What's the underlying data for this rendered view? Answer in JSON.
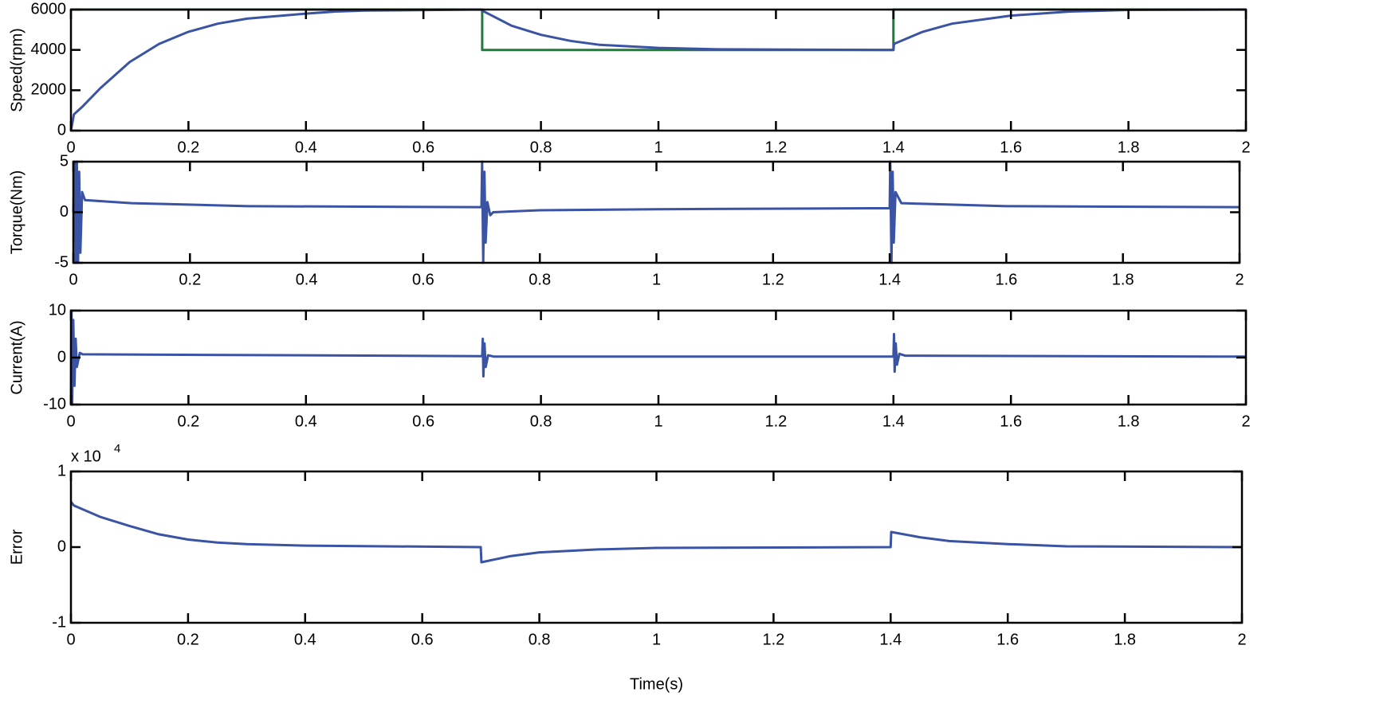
{
  "chart_data": [
    {
      "type": "line",
      "ylabel": "Speed(rpm)",
      "xlim": [
        0,
        2
      ],
      "ylim": [
        0,
        6000
      ],
      "xticks": [
        0,
        0.2,
        0.4,
        0.6,
        0.8,
        1,
        1.2,
        1.4,
        1.6,
        1.8,
        2
      ],
      "yticks": [
        0,
        2000,
        4000,
        6000
      ],
      "series": [
        {
          "color": "#1e7b3a",
          "x": [
            0,
            0.7,
            0.7,
            1.4,
            1.4,
            2
          ],
          "values": [
            6000,
            6000,
            4000,
            4000,
            6000,
            6000
          ]
        },
        {
          "color": "#3a53a4",
          "x": [
            0,
            0.005,
            0.02,
            0.05,
            0.1,
            0.15,
            0.2,
            0.25,
            0.3,
            0.4,
            0.45,
            0.5,
            0.7,
            0.7,
            0.75,
            0.8,
            0.85,
            0.9,
            1.0,
            1.1,
            1.4,
            1.401,
            1.45,
            1.5,
            1.6,
            1.7,
            1.8,
            2
          ],
          "values": [
            0,
            800,
            1200,
            2100,
            3400,
            4300,
            4900,
            5300,
            5550,
            5800,
            5900,
            5950,
            6000,
            5950,
            5200,
            4750,
            4450,
            4250,
            4100,
            4030,
            4000,
            4300,
            4900,
            5300,
            5700,
            5900,
            5980,
            6000
          ]
        }
      ]
    },
    {
      "type": "line",
      "ylabel": "Torque(Nm)",
      "xlim": [
        0,
        2
      ],
      "ylim": [
        -5,
        5
      ],
      "xticks": [
        0,
        0.2,
        0.4,
        0.6,
        0.8,
        1,
        1.2,
        1.4,
        1.6,
        1.8,
        2
      ],
      "yticks": [
        -5,
        0,
        5
      ],
      "series": [
        {
          "color": "#3a53a4",
          "x": [
            0,
            0.002,
            0.004,
            0.006,
            0.008,
            0.01,
            0.012,
            0.015,
            0.02,
            0.1,
            0.3,
            0.7,
            0.701,
            0.703,
            0.705,
            0.707,
            0.71,
            0.715,
            0.72,
            0.8,
            1.0,
            1.4,
            1.401,
            1.403,
            1.405,
            1.407,
            1.41,
            1.42,
            1.6,
            2
          ],
          "values": [
            0,
            5,
            -5,
            5,
            -5,
            4,
            -4,
            2,
            1.2,
            0.9,
            0.6,
            0.5,
            5,
            -5,
            4,
            -3,
            1,
            -0.3,
            0,
            0.2,
            0.3,
            0.4,
            5,
            -5,
            4,
            -3,
            2,
            0.9,
            0.6,
            0.5
          ]
        }
      ]
    },
    {
      "type": "line",
      "ylabel": "Current(A)",
      "xlim": [
        0,
        2
      ],
      "ylim": [
        -10,
        10
      ],
      "xticks": [
        0,
        0.2,
        0.4,
        0.6,
        0.8,
        1,
        1.2,
        1.4,
        1.6,
        1.8,
        2
      ],
      "yticks": [
        -10,
        0,
        10
      ],
      "series": [
        {
          "color": "#3a53a4",
          "x": [
            0,
            0.001,
            0.002,
            0.004,
            0.006,
            0.008,
            0.01,
            0.015,
            0.02,
            0.7,
            0.701,
            0.702,
            0.704,
            0.706,
            0.71,
            0.72,
            1.4,
            1.401,
            1.402,
            1.404,
            1.406,
            1.41,
            1.42,
            2
          ],
          "values": [
            -10,
            10,
            -10,
            8,
            -6,
            4,
            -2,
            1,
            0.7,
            0.3,
            4,
            -4,
            3,
            -2,
            0.5,
            0.2,
            0.2,
            5,
            -3,
            3,
            -1.5,
            0.8,
            0.4,
            0.2
          ]
        }
      ]
    },
    {
      "type": "line",
      "ylabel": "Error",
      "xlabel": "Time(s)",
      "y_multiplier_base": "x 10",
      "y_multiplier_exponent": 4,
      "xlim": [
        0,
        2
      ],
      "ylim": [
        -1,
        1
      ],
      "xticks": [
        0,
        0.2,
        0.4,
        0.6,
        0.8,
        1,
        1.2,
        1.4,
        1.6,
        1.8,
        2
      ],
      "yticks": [
        -1,
        0,
        1
      ],
      "series": [
        {
          "color": "#3a53a4",
          "x": [
            0,
            0.005,
            0.05,
            0.1,
            0.15,
            0.2,
            0.25,
            0.3,
            0.4,
            0.7,
            0.701,
            0.75,
            0.8,
            0.9,
            1.0,
            1.4,
            1.401,
            1.45,
            1.5,
            1.6,
            1.7,
            2
          ],
          "values": [
            0.6,
            0.55,
            0.4,
            0.28,
            0.17,
            0.1,
            0.06,
            0.04,
            0.02,
            0,
            -0.2,
            -0.12,
            -0.07,
            -0.03,
            -0.01,
            0,
            0.2,
            0.13,
            0.08,
            0.04,
            0.01,
            0
          ]
        }
      ]
    }
  ]
}
